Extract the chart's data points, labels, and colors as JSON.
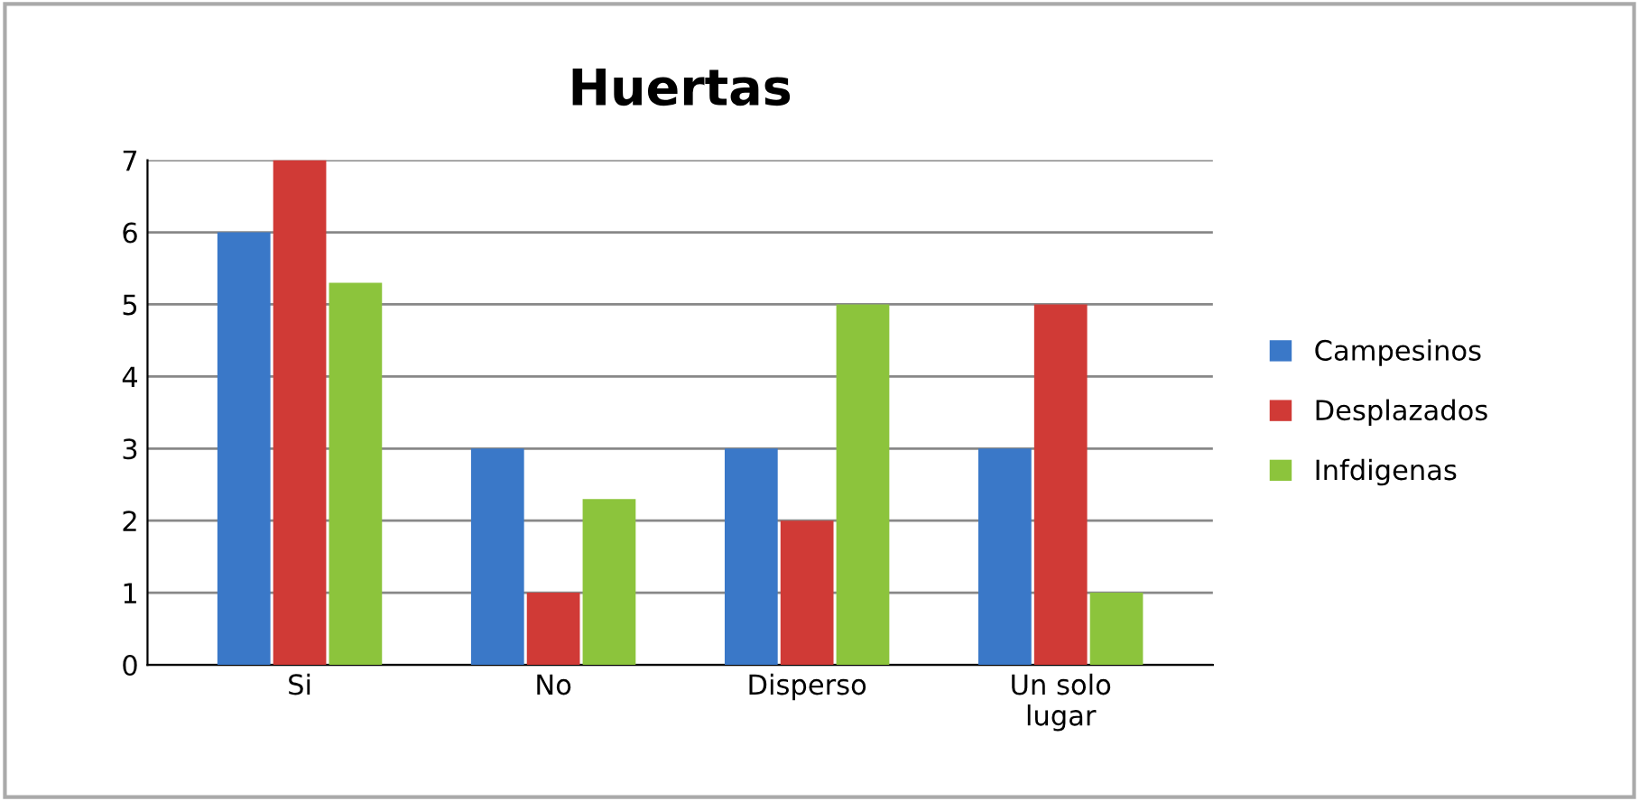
{
  "chart_data": {
    "type": "bar",
    "title": "Huertas",
    "categories": [
      "Si",
      "No",
      "Disperso",
      "Un solo\nlugar"
    ],
    "series": [
      {
        "name": "Campesinos",
        "color": "#3a78c8",
        "values": [
          6,
          3,
          3,
          3
        ]
      },
      {
        "name": "Desplazados",
        "color": "#d03a36",
        "values": [
          7,
          1,
          2,
          5
        ]
      },
      {
        "name": "Infdigenas",
        "color": "#8cc43c",
        "values": [
          5.3,
          2.3,
          5,
          1
        ]
      }
    ],
    "ylim": [
      0,
      7
    ],
    "yticks": [
      0,
      1,
      2,
      3,
      4,
      5,
      6,
      7
    ],
    "grid": "y",
    "legend": "right"
  }
}
